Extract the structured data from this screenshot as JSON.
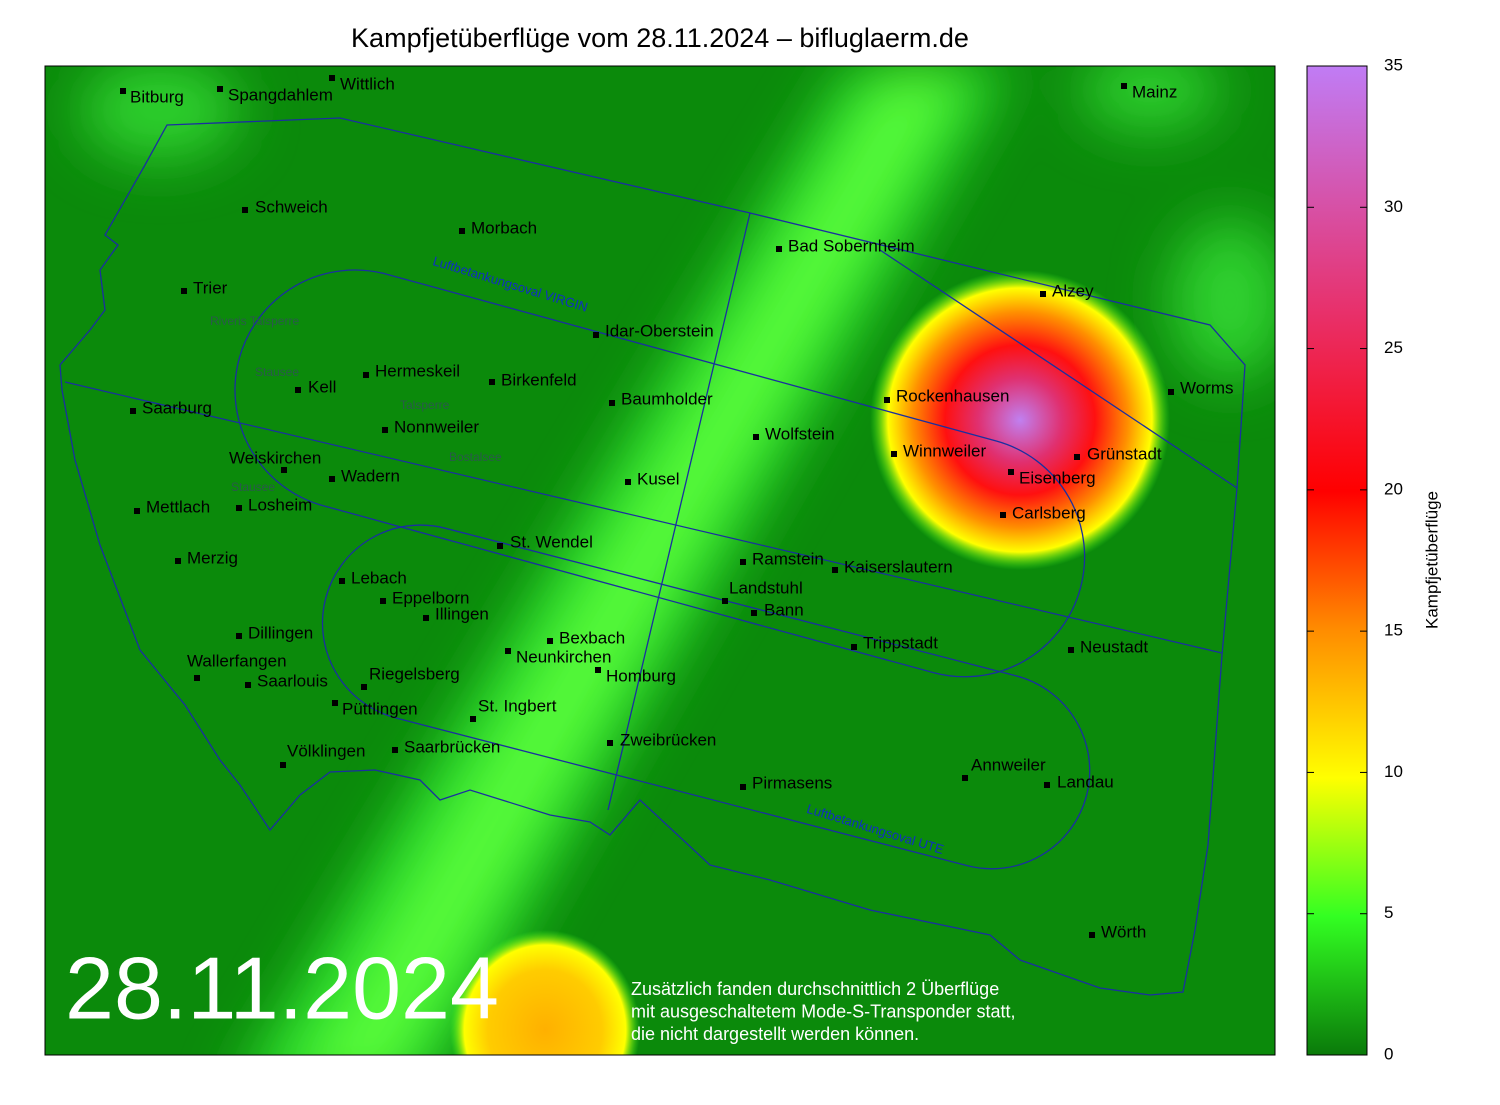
{
  "title": "Kampfjetüberflüge vom 28.11.2024 – bifluglaerm.de",
  "date": "28.11.2024",
  "note": [
    "Zusätzlich fanden durchschnittlich 2 Überflüge",
    "mit ausgeschaltetem Mode-S-Transponder statt,",
    "die nicht dargestellt werden können."
  ],
  "cities": [
    "Bitburg",
    "Spangdahlem",
    "Wittlich",
    "Mainz",
    "Schweich",
    "Morbach",
    "Bad Sobernheim",
    "Trier",
    "Alzey",
    "Idar-Oberstein",
    "Hermeskeil",
    "Kell",
    "Birkenfeld",
    "Saarburg",
    "Baumholder",
    "Rockenhausen",
    "Worms",
    "Nonnweiler",
    "Wolfstein",
    "Winnweiler",
    "Grünstadt",
    "Weiskirchen",
    "Wadern",
    "Eisenberg",
    "Kusel",
    "Mettlach",
    "Losheim",
    "Carlsberg",
    "St. Wendel",
    "Merzig",
    "Ramstein",
    "Kaiserslautern",
    "Lebach",
    "Landstuhl",
    "Eppelborn",
    "Bann",
    "Illingen",
    "Dillingen",
    "Bexbach",
    "Trippstadt",
    "Neustadt",
    "Neunkirchen",
    "Wallerfangen",
    "Homburg",
    "Saarlouis",
    "Riegelsberg",
    "Püttlingen",
    "St. Ingbert",
    "Zweibrücken",
    "Saarbrücken",
    "Völklingen",
    "Annweiler",
    "Pirmasens",
    "Landau",
    "Wörth"
  ],
  "lakes": [
    "Riveris Talsperre",
    "Stausee",
    "Talsperre",
    "Bostalsee",
    "Stausee"
  ],
  "ovals": [
    "Luftbetankungsoval VIRGIN",
    "Luftbetankungsoval UTE"
  ],
  "colorbar": {
    "label": "Kampfjetüberflüge",
    "lim": [
      0,
      35
    ],
    "ticks": [
      0,
      5,
      10,
      15,
      20,
      25,
      30,
      35
    ]
  }
}
